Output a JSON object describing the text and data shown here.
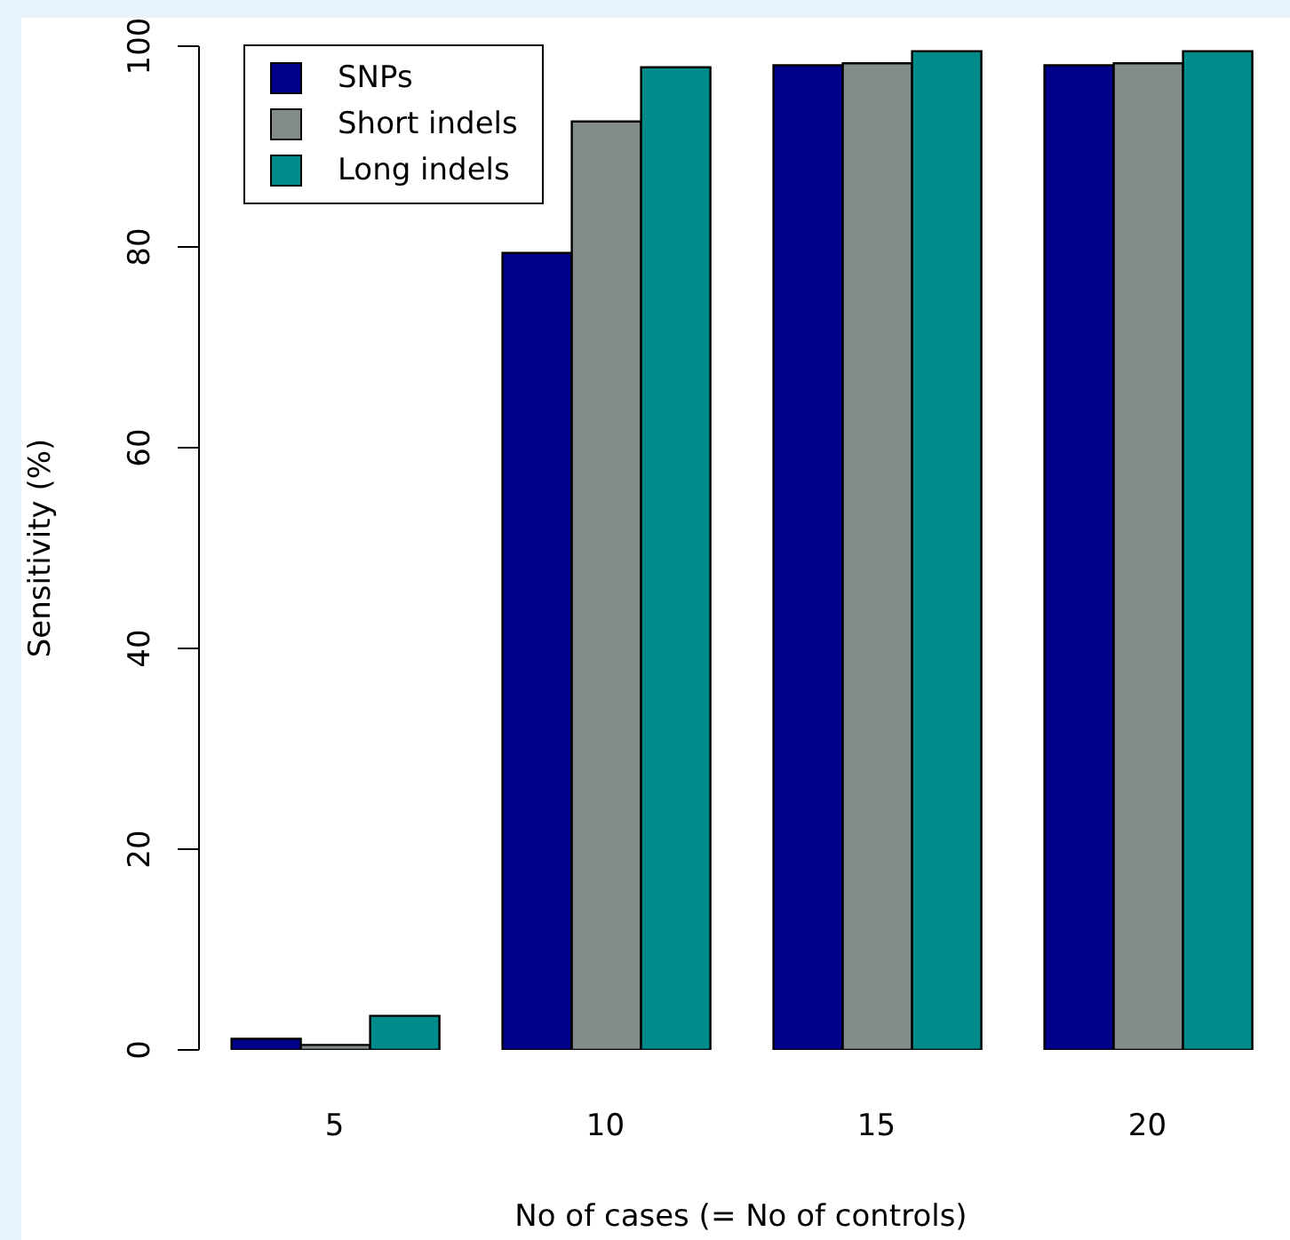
{
  "chart_data": {
    "type": "bar",
    "xlabel": "No of cases (= No of controls)",
    "ylabel": "Sensitivity (%)",
    "categories": [
      "5",
      "10",
      "15",
      "20"
    ],
    "series": [
      {
        "name": "SNPs",
        "color": "#00008b",
        "values": [
          1.1,
          79.4,
          98.1,
          98.1
        ]
      },
      {
        "name": "Short indels",
        "color": "#838b8b",
        "values": [
          0.5,
          92.5,
          98.3,
          98.3
        ]
      },
      {
        "name": "Long indels",
        "color": "#008b8b",
        "values": [
          3.4,
          97.9,
          99.5,
          99.5
        ]
      }
    ],
    "ylim": [
      0,
      100
    ],
    "yticks": [
      0,
      20,
      40,
      60,
      80,
      100
    ],
    "grid": false,
    "legend": "top left"
  }
}
